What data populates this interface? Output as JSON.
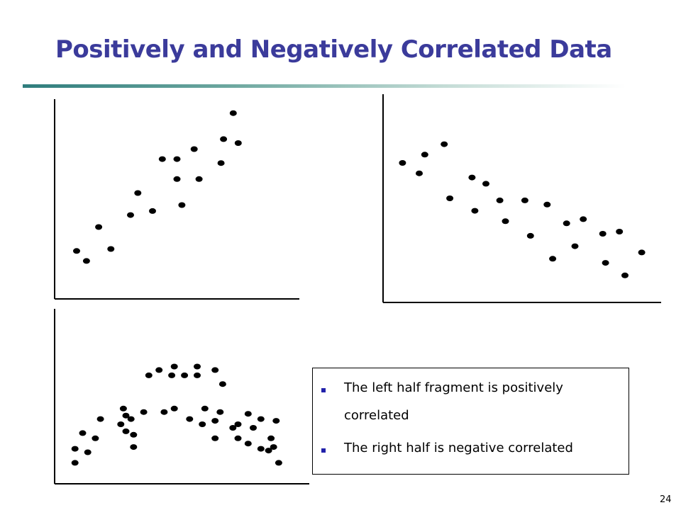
{
  "slide": {
    "title": "Positively and Negatively Correlated Data",
    "page_number": "24",
    "accent_color": "#3b3b9b",
    "rule_color": "#2f7d7d"
  },
  "notes": {
    "items": [
      "The left half fragment is positively correlated",
      "The right half is negative correlated"
    ],
    "bullet_color": "#2222aa"
  },
  "chart_data": [
    {
      "type": "scatter",
      "title": "",
      "xlabel": "",
      "ylabel": "",
      "xlim": [
        0,
        10
      ],
      "ylim": [
        0,
        10
      ],
      "grid": false,
      "series": [
        {
          "points": [
            [
              0.9,
              2.4
            ],
            [
              1.3,
              1.9
            ],
            [
              1.8,
              3.6
            ],
            [
              2.3,
              2.5
            ],
            [
              3.1,
              4.2
            ],
            [
              3.4,
              5.3
            ],
            [
              4.0,
              4.4
            ],
            [
              4.4,
              7.0
            ],
            [
              5.0,
              7.0
            ],
            [
              5.0,
              6.0
            ],
            [
              5.2,
              4.7
            ],
            [
              5.7,
              7.5
            ],
            [
              5.9,
              6.0
            ],
            [
              6.8,
              6.8
            ],
            [
              6.9,
              8.0
            ],
            [
              7.3,
              9.3
            ],
            [
              7.5,
              7.8
            ]
          ]
        }
      ]
    },
    {
      "type": "scatter",
      "title": "",
      "xlabel": "",
      "ylabel": "",
      "xlim": [
        0,
        10
      ],
      "ylim": [
        0,
        10
      ],
      "grid": false,
      "series": [
        {
          "points": [
            [
              0.7,
              6.7
            ],
            [
              1.3,
              6.2
            ],
            [
              1.5,
              7.1
            ],
            [
              2.2,
              7.6
            ],
            [
              2.4,
              5.0
            ],
            [
              3.2,
              6.0
            ],
            [
              3.3,
              4.4
            ],
            [
              3.7,
              5.7
            ],
            [
              4.2,
              4.9
            ],
            [
              4.4,
              3.9
            ],
            [
              5.1,
              4.9
            ],
            [
              5.3,
              3.2
            ],
            [
              5.9,
              4.7
            ],
            [
              6.1,
              2.1
            ],
            [
              6.6,
              3.8
            ],
            [
              6.9,
              2.7
            ],
            [
              7.2,
              4.0
            ],
            [
              7.9,
              3.3
            ],
            [
              8.0,
              1.9
            ],
            [
              8.5,
              3.4
            ],
            [
              8.7,
              1.3
            ],
            [
              9.3,
              2.4
            ]
          ]
        }
      ]
    },
    {
      "type": "scatter",
      "title": "",
      "xlabel": "",
      "ylabel": "",
      "xlim": [
        0,
        10
      ],
      "ylim": [
        0,
        10
      ],
      "grid": false,
      "series": [
        {
          "points": [
            [
              0.8,
              1.2
            ],
            [
              0.8,
              2.0
            ],
            [
              1.1,
              2.9
            ],
            [
              1.3,
              1.8
            ],
            [
              1.6,
              2.6
            ],
            [
              1.8,
              3.7
            ],
            [
              2.6,
              3.4
            ],
            [
              2.7,
              4.3
            ],
            [
              2.8,
              3.0
            ],
            [
              2.8,
              3.9
            ],
            [
              3.1,
              2.1
            ],
            [
              3.0,
              3.7
            ],
            [
              3.1,
              2.8
            ],
            [
              3.7,
              6.2
            ],
            [
              3.5,
              4.1
            ],
            [
              4.1,
              6.5
            ],
            [
              4.3,
              4.1
            ],
            [
              4.7,
              6.7
            ],
            [
              4.6,
              6.2
            ],
            [
              4.7,
              4.3
            ],
            [
              5.1,
              6.2
            ],
            [
              5.3,
              3.7
            ],
            [
              5.6,
              6.7
            ],
            [
              5.6,
              6.2
            ],
            [
              5.8,
              3.4
            ],
            [
              5.9,
              4.3
            ],
            [
              6.3,
              6.5
            ],
            [
              6.3,
              2.6
            ],
            [
              6.3,
              3.6
            ],
            [
              6.6,
              5.7
            ],
            [
              6.5,
              4.1
            ],
            [
              7.0,
              3.2
            ],
            [
              7.2,
              3.4
            ],
            [
              7.2,
              2.6
            ],
            [
              7.6,
              4.0
            ],
            [
              7.8,
              3.2
            ],
            [
              7.6,
              2.3
            ],
            [
              8.1,
              2.0
            ],
            [
              8.1,
              3.7
            ],
            [
              8.4,
              1.9
            ],
            [
              8.6,
              2.1
            ],
            [
              8.5,
              2.6
            ],
            [
              8.8,
              1.2
            ],
            [
              8.7,
              3.6
            ]
          ]
        }
      ]
    }
  ]
}
